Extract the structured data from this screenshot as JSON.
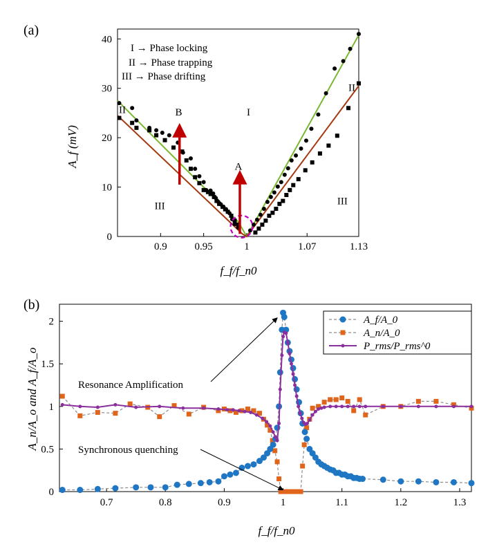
{
  "chart_data": [
    {
      "panel": "(a)",
      "type": "scatter",
      "xlabel": "f_f/f_n0",
      "ylabel": "A_f (mV)",
      "xlim": [
        0.85,
        1.13
      ],
      "ylim": [
        0,
        42
      ],
      "xtick_labels": [
        "0.9",
        "0.95",
        "1",
        "1.07",
        "1.13"
      ],
      "ytick_labels": [
        "0",
        "10",
        "20",
        "30",
        "40"
      ],
      "legend_text": [
        "I → Phase locking",
        "II → Phase trapping",
        "III → Phase drifting"
      ],
      "region_labels": {
        "I": "I",
        "II_left": "II",
        "II_right": "II",
        "III_left": "III",
        "III_right": "III"
      },
      "annotations": {
        "A": "A",
        "B": "B"
      },
      "colors": {
        "green_line": "#7ab92f",
        "brown_line": "#a53a10",
        "arrow": "#c00000",
        "circle": "#c000c0"
      },
      "series": [
        {
          "name": "phase trapping boundary (circles)",
          "marker": "circle",
          "x": [
            0.852,
            0.867,
            0.872,
            0.887,
            0.895,
            0.902,
            0.91,
            0.92,
            0.926,
            0.935,
            0.94,
            0.945,
            0.95,
            0.953,
            0.958,
            0.961,
            0.964,
            0.967,
            0.97,
            0.973,
            0.976,
            0.98,
            0.983,
            0.986,
            0.99,
            1.004,
            1.008,
            1.012,
            1.016,
            1.02,
            1.024,
            1.028,
            1.032,
            1.036,
            1.04,
            1.044,
            1.048,
            1.052,
            1.057,
            1.063,
            1.069,
            1.075,
            1.083,
            1.092,
            1.102,
            1.112,
            1.12,
            1.13
          ],
          "y": [
            27,
            26,
            23.5,
            22,
            21.5,
            21,
            20.5,
            19,
            17,
            15.8,
            13.7,
            12.2,
            11,
            9.4,
            9.3,
            8.7,
            7.8,
            7,
            6.5,
            6,
            5.5,
            4.7,
            3.5,
            2.5,
            1.8,
            1.2,
            2.4,
            3.4,
            4.4,
            5.6,
            7,
            8,
            8.9,
            10.1,
            11,
            12.5,
            13.8,
            15.4,
            16.4,
            17.8,
            19.4,
            21.8,
            24.7,
            29,
            34,
            35.5,
            38,
            41
          ]
        },
        {
          "name": "phase drifting boundary (squares)",
          "marker": "square",
          "x": [
            0.852,
            0.867,
            0.872,
            0.887,
            0.895,
            0.905,
            0.915,
            0.925,
            0.93,
            0.935,
            0.94,
            0.945,
            0.95,
            0.955,
            0.958,
            0.962,
            0.965,
            0.968,
            0.972,
            0.975,
            0.978,
            0.982,
            0.986,
            0.99,
            1.01,
            1.014,
            1.018,
            1.022,
            1.026,
            1.03,
            1.034,
            1.038,
            1.042,
            1.046,
            1.05,
            1.054,
            1.06,
            1.068,
            1.076,
            1.085,
            1.095,
            1.105,
            1.118,
            1.13
          ],
          "y": [
            24,
            23,
            22,
            21.5,
            20.5,
            19.5,
            18,
            17.2,
            15.4,
            13.7,
            12,
            10.8,
            9.4,
            9,
            8.6,
            8,
            7.2,
            6.6,
            6,
            5.5,
            5,
            4.2,
            3.2,
            2.4,
            0.8,
            1.6,
            2.4,
            3.2,
            4.2,
            4.8,
            5.6,
            6.6,
            7.2,
            8.4,
            9.4,
            10.4,
            11.6,
            13.4,
            15,
            16.8,
            18.4,
            20.4,
            26,
            31
          ]
        }
      ],
      "fit_lines": [
        {
          "name": "green fit",
          "x": [
            0.85,
            0.99,
            1.0,
            1.13
          ],
          "y": [
            27.5,
            3.0,
            0.0,
            40.8
          ]
        },
        {
          "name": "brown fit",
          "x": [
            0.85,
            0.995,
            1.0,
            1.13
          ],
          "y": [
            24.5,
            0.5,
            0.0,
            30.5
          ]
        }
      ],
      "arrows": [
        {
          "label": "A",
          "x": 0.992,
          "y_from": 0.5,
          "y_to": 12
        },
        {
          "label": "B",
          "x": 0.922,
          "y_from": 10.5,
          "y_to": 21.5
        }
      ],
      "circle_center": [
        0.994,
        2
      ]
    },
    {
      "panel": "(b)",
      "type": "line",
      "xlabel": "f_f/f_n0",
      "ylabel": "A_n/A_o and A_f/A_o",
      "xlim": [
        0.62,
        1.32
      ],
      "ylim": [
        0,
        2.2
      ],
      "xtick_labels": [
        "0.7",
        "0.8",
        "0.9",
        "1",
        "1.1",
        "1.2",
        "1.3"
      ],
      "ytick_labels": [
        "0",
        "0.5",
        "1",
        "1.5",
        "2"
      ],
      "legend_entries": [
        "A_f/A_0",
        "A_n/A_0",
        "P_rms/P_rms^0"
      ],
      "annotations": {
        "resonance": "Resonance Amplification",
        "quench": "Synchronous quenching"
      },
      "colors": {
        "Af": "#1f77c4",
        "An": "#e0651b",
        "P": "#8b2f9e"
      },
      "series": [
        {
          "name": "A_f/A_0",
          "x": [
            0.625,
            0.655,
            0.685,
            0.715,
            0.75,
            0.775,
            0.8,
            0.82,
            0.84,
            0.86,
            0.875,
            0.89,
            0.9,
            0.91,
            0.92,
            0.93,
            0.94,
            0.95,
            0.96,
            0.967,
            0.973,
            0.978,
            0.983,
            0.987,
            0.99,
            0.993,
            0.995,
            0.998,
            1.0,
            1.002,
            1.005,
            1.008,
            1.011,
            1.014,
            1.017,
            1.02,
            1.023,
            1.027,
            1.03,
            1.033,
            1.037,
            1.04,
            1.045,
            1.05,
            1.055,
            1.06,
            1.065,
            1.07,
            1.075,
            1.08,
            1.085,
            1.09,
            1.095,
            1.1,
            1.105,
            1.11,
            1.115,
            1.12,
            1.125,
            1.13,
            1.135,
            1.17,
            1.2,
            1.23,
            1.26,
            1.29,
            1.32
          ],
          "y": [
            0.02,
            0.02,
            0.03,
            0.04,
            0.05,
            0.05,
            0.05,
            0.08,
            0.09,
            0.1,
            0.11,
            0.12,
            0.18,
            0.2,
            0.22,
            0.28,
            0.3,
            0.32,
            0.36,
            0.4,
            0.45,
            0.5,
            0.55,
            0.62,
            0.75,
            1.0,
            1.4,
            1.9,
            2.1,
            2.05,
            1.9,
            1.75,
            1.65,
            1.55,
            1.45,
            1.32,
            1.2,
            1.05,
            0.92,
            0.8,
            0.7,
            0.62,
            0.5,
            0.45,
            0.4,
            0.35,
            0.32,
            0.3,
            0.28,
            0.26,
            0.25,
            0.22,
            0.22,
            0.2,
            0.2,
            0.18,
            0.18,
            0.16,
            0.16,
            0.15,
            0.15,
            0.14,
            0.12,
            0.12,
            0.11,
            0.11,
            0.1
          ]
        },
        {
          "name": "A_n/A_0",
          "x": [
            0.625,
            0.655,
            0.685,
            0.715,
            0.74,
            0.77,
            0.79,
            0.815,
            0.84,
            0.865,
            0.89,
            0.9,
            0.91,
            0.92,
            0.93,
            0.94,
            0.95,
            0.96,
            0.967,
            0.973,
            0.978,
            0.982,
            0.986,
            0.99,
            0.993,
            0.996,
            1.0,
            1.005,
            1.01,
            1.015,
            1.02,
            1.025,
            1.03,
            1.033,
            1.036,
            1.04,
            1.045,
            1.05,
            1.06,
            1.07,
            1.08,
            1.09,
            1.1,
            1.11,
            1.12,
            1.13,
            1.14,
            1.17,
            1.2,
            1.23,
            1.26,
            1.29,
            1.32
          ],
          "y": [
            1.12,
            0.89,
            0.93,
            0.92,
            1.03,
            0.99,
            0.88,
            1.01,
            0.91,
            0.99,
            0.95,
            0.97,
            0.95,
            0.93,
            0.95,
            0.97,
            0.95,
            0.92,
            0.85,
            0.78,
            0.72,
            0.6,
            0.48,
            0.35,
            0.15,
            0.0,
            0.0,
            0.0,
            0.0,
            0.0,
            0.0,
            0.0,
            0.0,
            0.3,
            0.55,
            0.75,
            0.85,
            0.98,
            1.0,
            1.05,
            1.08,
            1.08,
            1.1,
            1.06,
            0.95,
            1.08,
            0.9,
            1.0,
            1.0,
            1.06,
            1.06,
            1.02,
            0.98
          ]
        },
        {
          "name": "P_rms/P_rms^0",
          "x": [
            0.625,
            0.655,
            0.685,
            0.715,
            0.75,
            0.79,
            0.83,
            0.865,
            0.89,
            0.905,
            0.915,
            0.925,
            0.935,
            0.945,
            0.955,
            0.965,
            0.972,
            0.978,
            0.983,
            0.987,
            0.99,
            0.993,
            0.995,
            0.998,
            1.0,
            1.002,
            1.005,
            1.008,
            1.011,
            1.014,
            1.017,
            1.02,
            1.023,
            1.026,
            1.029,
            1.032,
            1.035,
            1.038,
            1.041,
            1.045,
            1.05,
            1.055,
            1.06,
            1.065,
            1.07,
            1.08,
            1.09,
            1.1,
            1.11,
            1.12,
            1.13,
            1.14,
            1.17,
            1.2,
            1.23,
            1.26,
            1.29,
            1.32
          ],
          "y": [
            1.02,
            1.0,
            0.99,
            1.02,
            0.99,
            1.0,
            0.98,
            0.98,
            0.97,
            0.96,
            0.96,
            0.95,
            0.94,
            0.93,
            0.9,
            0.86,
            0.82,
            0.77,
            0.7,
            0.64,
            0.6,
            0.8,
            1.2,
            1.6,
            1.82,
            1.87,
            1.86,
            1.75,
            1.62,
            1.5,
            1.38,
            1.25,
            1.12,
            1.0,
            0.92,
            0.86,
            0.81,
            0.79,
            0.8,
            0.84,
            0.9,
            0.94,
            0.97,
            0.98,
            0.99,
            1.0,
            1.0,
            1.0,
            1.0,
            1.0,
            1.0,
            1.0,
            1.0,
            1.0,
            1.0,
            1.0,
            1.0,
            1.0
          ]
        }
      ]
    }
  ]
}
